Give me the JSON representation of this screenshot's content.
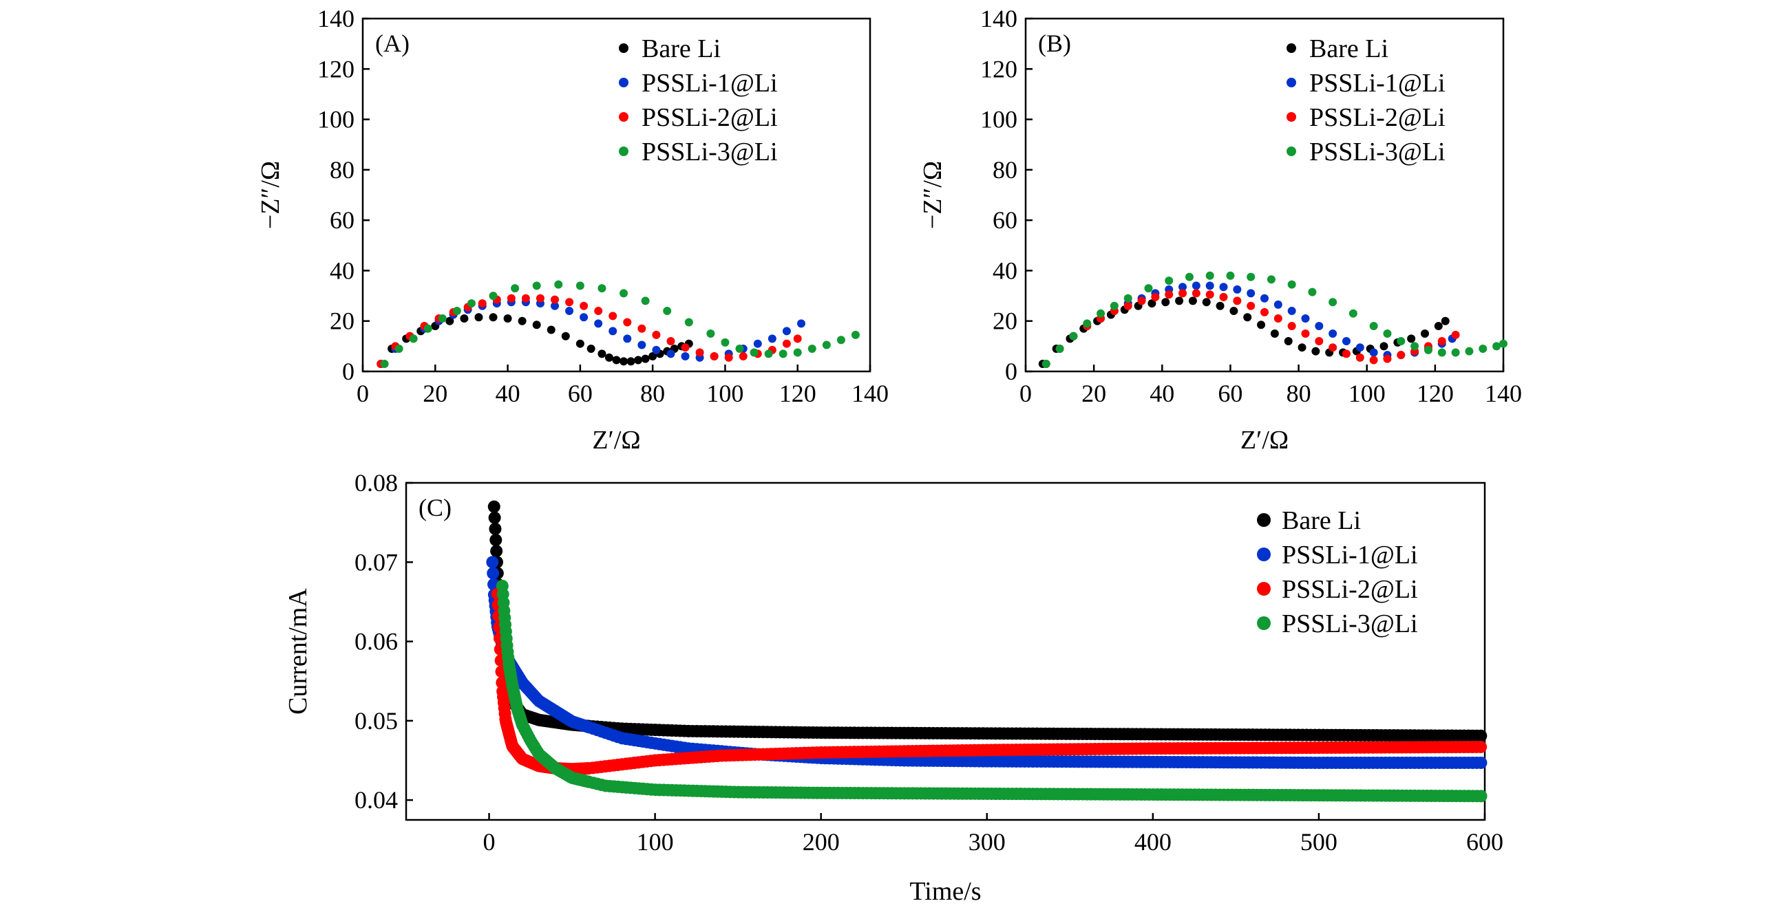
{
  "chart_data": [
    {
      "id": "A",
      "type": "scatter",
      "panel_label": "(A)",
      "xlabel": "Z′/Ω",
      "ylabel": "−Z″/Ω",
      "xlim": [
        0,
        140
      ],
      "ylim": [
        0,
        140
      ],
      "xticks": [
        0,
        20,
        40,
        60,
        80,
        100,
        120,
        140
      ],
      "yticks": [
        0,
        20,
        40,
        60,
        80,
        100,
        120,
        140
      ],
      "legend_position": "top-right",
      "series": [
        {
          "name": "Bare Li",
          "color": "#000000",
          "x": [
            5,
            8,
            12,
            16,
            20,
            24,
            28,
            32,
            36,
            40,
            44,
            48,
            52,
            56,
            60,
            63,
            66,
            68,
            70,
            72,
            74,
            76,
            78,
            80,
            82,
            84,
            86,
            88,
            90
          ],
          "y": [
            3,
            9,
            13,
            16,
            18,
            20,
            21,
            21.5,
            21.5,
            21,
            20,
            18.5,
            16.5,
            14,
            11,
            9,
            7,
            5.5,
            4.5,
            4,
            4,
            4.5,
            5,
            6,
            7,
            8,
            9,
            10,
            11
          ]
        },
        {
          "name": "PSSLi-1@Li",
          "color": "#0033cc",
          "x": [
            5,
            9,
            13,
            17,
            21,
            25,
            29,
            33,
            37,
            41,
            45,
            49,
            53,
            57,
            61,
            65,
            69,
            73,
            77,
            81,
            85,
            89,
            93,
            97,
            101,
            105,
            109,
            113,
            117,
            121
          ],
          "y": [
            3,
            9,
            14,
            17,
            20,
            22.5,
            24.5,
            26,
            27,
            27.5,
            27.5,
            27,
            26,
            24,
            21.5,
            19,
            16,
            13,
            10.5,
            8.5,
            7,
            6,
            5.5,
            6,
            7,
            9,
            11,
            13,
            16,
            19
          ]
        },
        {
          "name": "PSSLi-2@Li",
          "color": "#ff0000",
          "x": [
            5,
            9,
            13,
            17,
            21,
            25,
            29,
            33,
            37,
            41,
            45,
            49,
            53,
            57,
            61,
            65,
            69,
            73,
            77,
            81,
            85,
            89,
            93,
            97,
            101,
            105,
            109,
            113,
            117,
            120
          ],
          "y": [
            3,
            10,
            14,
            18,
            21,
            23.5,
            25.5,
            27,
            28.5,
            29,
            29,
            29,
            28.5,
            27.5,
            26,
            24,
            22,
            19.5,
            17,
            14.5,
            12,
            9.5,
            7.5,
            6,
            5.5,
            6,
            7,
            8.5,
            11,
            13
          ]
        },
        {
          "name": "PSSLi-3@Li",
          "color": "#119933",
          "x": [
            6,
            10,
            14,
            18,
            22,
            26,
            30,
            36,
            42,
            48,
            54,
            60,
            66,
            72,
            78,
            84,
            90,
            96,
            100,
            104,
            108,
            112,
            116,
            120,
            124,
            128,
            132,
            136
          ],
          "y": [
            3,
            9,
            13,
            17,
            21,
            24,
            27,
            30,
            33,
            34,
            34.5,
            34,
            33,
            31,
            28,
            24,
            19.5,
            15,
            11.5,
            9,
            7.5,
            7,
            7,
            7.5,
            9,
            10.5,
            12.5,
            14.5
          ]
        }
      ]
    },
    {
      "id": "B",
      "type": "scatter",
      "panel_label": "(B)",
      "xlabel": "Z′/Ω",
      "ylabel": "−Z″/Ω",
      "xlim": [
        0,
        140
      ],
      "ylim": [
        0,
        140
      ],
      "xticks": [
        0,
        20,
        40,
        60,
        80,
        100,
        120,
        140
      ],
      "yticks": [
        0,
        20,
        40,
        60,
        80,
        100,
        120,
        140
      ],
      "legend_position": "top-right",
      "series": [
        {
          "name": "Bare Li",
          "color": "#000000",
          "x": [
            5,
            9,
            13,
            17,
            21,
            25,
            29,
            33,
            37,
            41,
            45,
            49,
            53,
            57,
            61,
            65,
            69,
            73,
            77,
            81,
            85,
            89,
            93,
            97,
            101,
            105,
            109,
            113,
            117,
            121,
            123
          ],
          "y": [
            3,
            9,
            13,
            17,
            20,
            22.5,
            24.5,
            26,
            27,
            27.5,
            28,
            28,
            27.5,
            26,
            24,
            21.5,
            18.5,
            15,
            12,
            9.5,
            8,
            7.5,
            7.5,
            8,
            9,
            10,
            11.5,
            13,
            15,
            18,
            20
          ]
        },
        {
          "name": "PSSLi-1@Li",
          "color": "#0033cc",
          "x": [
            6,
            10,
            14,
            18,
            22,
            26,
            30,
            34,
            38,
            42,
            46,
            50,
            54,
            58,
            62,
            66,
            70,
            74,
            78,
            82,
            86,
            90,
            94,
            98,
            102,
            106,
            110,
            114,
            118,
            122,
            125
          ],
          "y": [
            3,
            9,
            14,
            18,
            21,
            24,
            27,
            29,
            31,
            32.5,
            33.5,
            34,
            34,
            33.5,
            32.5,
            31,
            29,
            26.5,
            24,
            21,
            18,
            15,
            12,
            9.5,
            7.5,
            6.5,
            6.5,
            7.5,
            9,
            11,
            13
          ]
        },
        {
          "name": "PSSLi-2@Li",
          "color": "#ff0000",
          "x": [
            6,
            10,
            14,
            18,
            22,
            26,
            30,
            34,
            38,
            42,
            46,
            50,
            54,
            58,
            62,
            66,
            70,
            74,
            78,
            82,
            86,
            90,
            94,
            98,
            102,
            106,
            110,
            114,
            118,
            122,
            126
          ],
          "y": [
            3,
            9,
            14,
            18,
            21,
            24,
            26,
            28,
            29.5,
            30.5,
            31,
            31,
            30.5,
            29.5,
            28,
            26,
            23.5,
            21,
            18,
            15,
            12,
            9.5,
            7,
            5.5,
            4.5,
            5,
            6.5,
            8,
            10,
            12,
            14.5
          ]
        },
        {
          "name": "PSSLi-3@Li",
          "color": "#119933",
          "x": [
            6,
            10,
            14,
            18,
            22,
            26,
            30,
            36,
            42,
            48,
            54,
            60,
            66,
            72,
            78,
            84,
            90,
            96,
            102,
            106,
            110,
            114,
            118,
            122,
            126,
            130,
            134,
            138,
            140
          ],
          "y": [
            3,
            9,
            14,
            19,
            23,
            26,
            29,
            33,
            36,
            37.5,
            38,
            38,
            37.5,
            36.5,
            34.5,
            31.5,
            27.5,
            23,
            18,
            15,
            12,
            10,
            8.5,
            7.5,
            7.5,
            8,
            9,
            10,
            11
          ]
        }
      ]
    },
    {
      "id": "C",
      "type": "line",
      "panel_label": "(C)",
      "xlabel": "Time/s",
      "ylabel": "Current/mA",
      "xlim": [
        -50,
        600
      ],
      "ylim": [
        0.0375,
        0.08
      ],
      "xticks": [
        0,
        100,
        200,
        300,
        400,
        500,
        600
      ],
      "yticks": [
        0.04,
        0.05,
        0.06,
        0.07,
        0.08
      ],
      "ytick_labels": [
        "0.04",
        "0.05",
        "0.06",
        "0.07",
        "0.08"
      ],
      "legend_position": "top-right",
      "series": [
        {
          "name": "Bare Li",
          "color": "#000000",
          "x": [
            3,
            4,
            5,
            6,
            8,
            10,
            14,
            20,
            30,
            50,
            80,
            120,
            200,
            300,
            400,
            500,
            600
          ],
          "y": [
            0.077,
            0.073,
            0.069,
            0.065,
            0.06,
            0.056,
            0.0525,
            0.0508,
            0.0501,
            0.0495,
            0.049,
            0.0487,
            0.0485,
            0.0484,
            0.0483,
            0.0482,
            0.0481
          ]
        },
        {
          "name": "PSSLi-1@Li",
          "color": "#0033cc",
          "x": [
            2,
            3,
            5,
            8,
            12,
            20,
            30,
            50,
            80,
            120,
            160,
            200,
            250,
            300,
            400,
            500,
            600
          ],
          "y": [
            0.07,
            0.066,
            0.062,
            0.0595,
            0.0575,
            0.0548,
            0.0525,
            0.0499,
            0.0478,
            0.0465,
            0.0458,
            0.0453,
            0.045,
            0.0449,
            0.0448,
            0.0447,
            0.0447
          ]
        },
        {
          "name": "PSSLi-2@Li",
          "color": "#ff0000",
          "x": [
            5,
            6,
            7,
            8,
            10,
            14,
            20,
            30,
            40,
            50,
            60,
            80,
            100,
            140,
            200,
            300,
            400,
            500,
            600
          ],
          "y": [
            0.066,
            0.062,
            0.058,
            0.054,
            0.05,
            0.0468,
            0.0452,
            0.0443,
            0.044,
            0.0439,
            0.044,
            0.0445,
            0.045,
            0.0456,
            0.046,
            0.0463,
            0.0465,
            0.0466,
            0.0467
          ]
        },
        {
          "name": "PSSLi-3@Li",
          "color": "#119933",
          "x": [
            8,
            9,
            10,
            11,
            12,
            14,
            17,
            20,
            25,
            30,
            40,
            50,
            70,
            100,
            150,
            200,
            300,
            400,
            500,
            600
          ],
          "y": [
            0.067,
            0.064,
            0.0615,
            0.059,
            0.057,
            0.0545,
            0.0515,
            0.0495,
            0.0475,
            0.0458,
            0.044,
            0.0428,
            0.0418,
            0.0413,
            0.041,
            0.0409,
            0.0408,
            0.0407,
            0.0406,
            0.0405
          ]
        }
      ]
    }
  ]
}
